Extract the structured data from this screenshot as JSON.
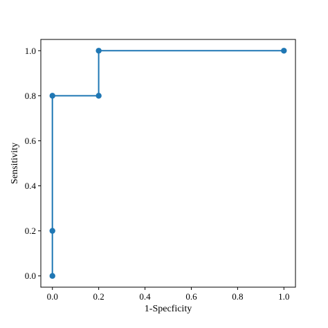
{
  "chart_data": {
    "type": "line",
    "title": "",
    "xlabel": "1-Specficity",
    "ylabel": "Sensitivity",
    "xlim": [
      -0.05,
      1.05
    ],
    "ylim": [
      -0.05,
      1.05
    ],
    "xticks": [
      "0.0",
      "0.2",
      "0.4",
      "0.6",
      "0.8",
      "1.0"
    ],
    "yticks": [
      "0.0",
      "0.2",
      "0.4",
      "0.6",
      "0.8",
      "1.0"
    ],
    "grid": false,
    "series": [
      {
        "color": "#1f77b4",
        "marker": "circle",
        "x": [
          0.0,
          0.0,
          0.0,
          0.2,
          0.2,
          1.0
        ],
        "y": [
          0.0,
          0.2,
          0.8,
          0.8,
          1.0,
          1.0
        ]
      }
    ]
  }
}
